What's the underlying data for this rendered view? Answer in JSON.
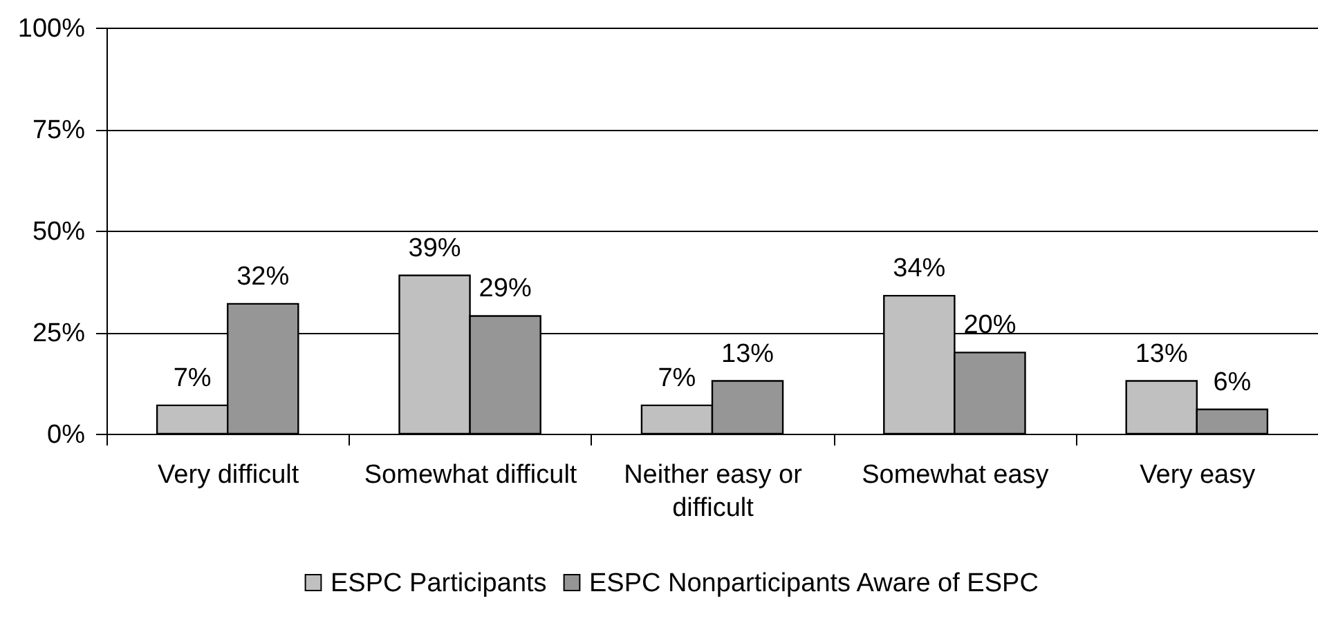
{
  "chart_data": {
    "type": "bar",
    "categories": [
      "Very difficult",
      "Somewhat difficult",
      "Neither easy or difficult",
      "Somewhat easy",
      "Very easy"
    ],
    "series": [
      {
        "name": "ESPC Participants",
        "color": "#c0c0c0",
        "values": [
          7,
          39,
          7,
          34,
          13
        ],
        "value_labels": [
          "7%",
          "39%",
          "7%",
          "34%",
          "13%"
        ]
      },
      {
        "name": "ESPC Nonparticipants Aware of ESPC",
        "color": "#969696",
        "values": [
          32,
          29,
          13,
          20,
          6
        ],
        "value_labels": [
          "32%",
          "29%",
          "13%",
          "20%",
          "6%"
        ]
      }
    ],
    "ylim": [
      0,
      100
    ],
    "yticks": [
      {
        "value": 0,
        "label": "0%"
      },
      {
        "value": 25,
        "label": "25%"
      },
      {
        "value": 50,
        "label": "50%"
      },
      {
        "value": 75,
        "label": "75%"
      },
      {
        "value": 100,
        "label": "100%"
      }
    ],
    "grid": "y",
    "legend": "bottom"
  }
}
